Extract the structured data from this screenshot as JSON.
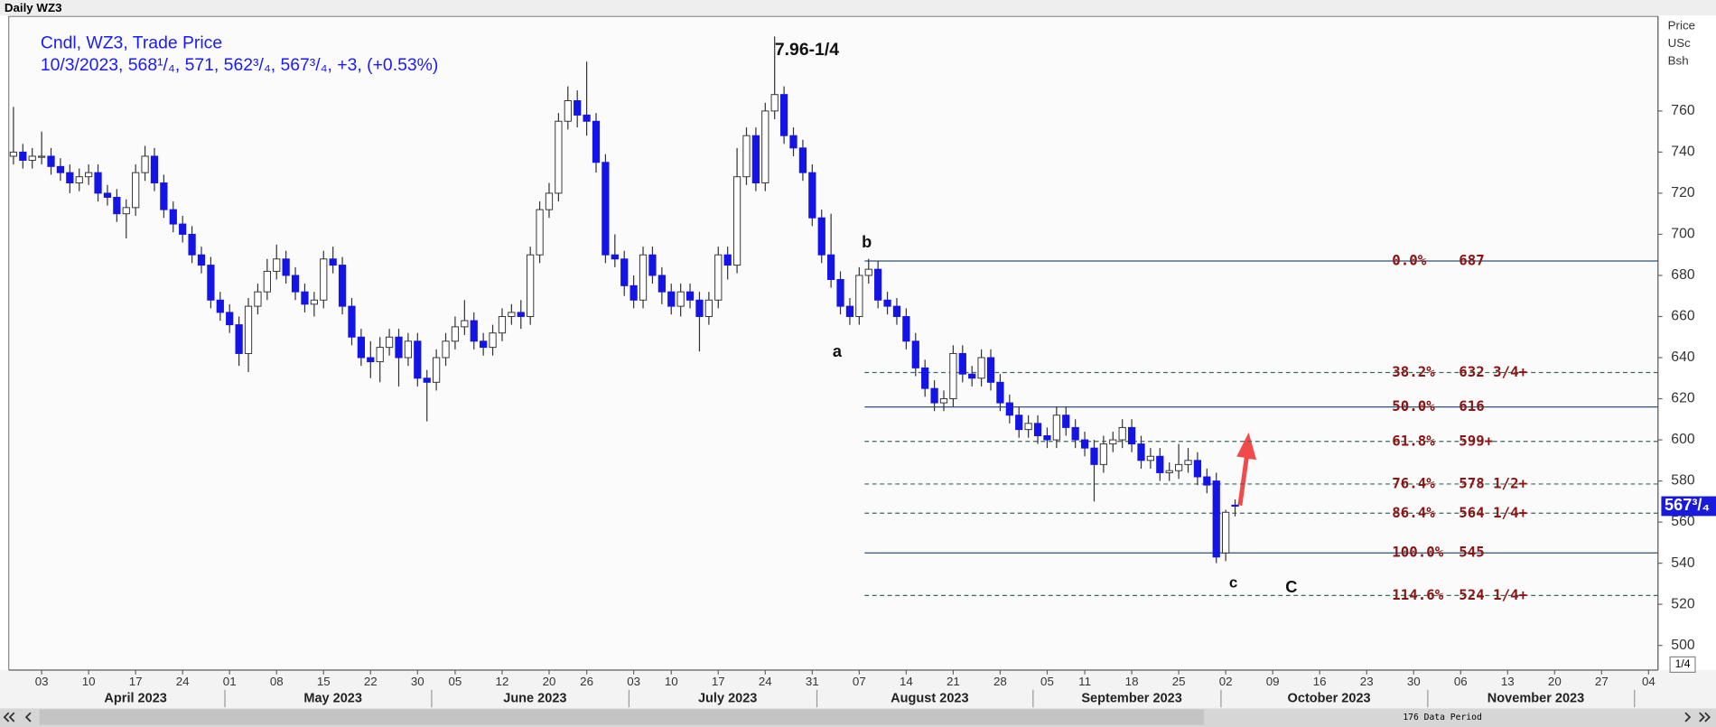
{
  "chart_data": {
    "type": "candlestick",
    "title": "Daily WZ3",
    "legend": [
      "Cndl, WZ3, Trade Price",
      "10/3/2023, 568¹/₄, 571, 562³/₄, 567³/₄, +3, (+0.53%)"
    ],
    "y_axis_label": [
      "Price",
      "USc",
      "Bsh"
    ],
    "up_color": "#ffffff",
    "down_color": "#1414e6",
    "outline_color": "#333333",
    "xlim": [
      -0.5,
      175
    ],
    "ylim": [
      488,
      806
    ],
    "yticks": [
      500,
      520,
      540,
      560,
      580,
      600,
      620,
      640,
      660,
      680,
      700,
      720,
      740,
      760
    ],
    "xticks": [
      {
        "value": 3,
        "label": "03"
      },
      {
        "value": 8,
        "label": "10"
      },
      {
        "value": 13,
        "label": "17"
      },
      {
        "value": 18,
        "label": "24"
      },
      {
        "value": 23,
        "label": "01"
      },
      {
        "value": 28,
        "label": "08"
      },
      {
        "value": 33,
        "label": "15"
      },
      {
        "value": 38,
        "label": "22"
      },
      {
        "value": 43,
        "label": "30"
      },
      {
        "value": 47,
        "label": "05"
      },
      {
        "value": 52,
        "label": "12"
      },
      {
        "value": 57,
        "label": "20"
      },
      {
        "value": 61,
        "label": "26"
      },
      {
        "value": 66,
        "label": "03"
      },
      {
        "value": 70,
        "label": "10"
      },
      {
        "value": 75,
        "label": "17"
      },
      {
        "value": 80,
        "label": "24"
      },
      {
        "value": 85,
        "label": "31"
      },
      {
        "value": 90,
        "label": "07"
      },
      {
        "value": 95,
        "label": "14"
      },
      {
        "value": 100,
        "label": "21"
      },
      {
        "value": 105,
        "label": "28"
      },
      {
        "value": 110,
        "label": "05"
      },
      {
        "value": 114,
        "label": "11"
      },
      {
        "value": 119,
        "label": "18"
      },
      {
        "value": 124,
        "label": "25"
      },
      {
        "value": 129,
        "label": "02"
      },
      {
        "value": 134,
        "label": "09"
      },
      {
        "value": 139,
        "label": "16"
      },
      {
        "value": 144,
        "label": "23"
      },
      {
        "value": 149,
        "label": "30"
      },
      {
        "value": 154,
        "label": "06"
      },
      {
        "value": 159,
        "label": "13"
      },
      {
        "value": 164,
        "label": "20"
      },
      {
        "value": 169,
        "label": "27"
      },
      {
        "value": 174,
        "label": "04"
      }
    ],
    "months": [
      "April 2023",
      "May 2023",
      "June 2023",
      "July 2023",
      "August 2023",
      "September 2023",
      "October 2023",
      "November 2023"
    ],
    "candles": {
      "open": [
        738,
        740,
        736,
        738,
        738,
        733,
        730,
        725,
        728,
        730,
        720,
        718,
        710,
        713,
        730,
        738,
        725,
        712,
        705,
        700,
        690,
        685,
        668,
        662,
        656,
        642,
        665,
        672,
        682,
        688,
        680,
        672,
        666,
        668,
        688,
        685,
        665,
        650,
        640,
        638,
        645,
        650,
        640,
        648,
        630,
        628,
        640,
        648,
        655,
        658,
        648,
        645,
        652,
        660,
        662,
        660,
        690,
        712,
        720,
        755,
        765,
        758,
        755,
        735,
        690,
        688,
        675,
        668,
        690,
        680,
        672,
        665,
        672,
        668,
        660,
        668,
        690,
        685,
        728,
        748,
        725,
        760,
        768,
        748,
        742,
        730,
        708,
        690,
        678,
        665,
        660,
        680,
        683,
        668,
        665,
        660,
        648,
        635,
        625,
        618,
        620,
        642,
        632,
        630,
        640,
        628,
        618,
        612,
        605,
        608,
        602,
        600,
        612,
        606,
        600,
        596,
        588,
        598,
        600,
        606,
        598,
        590,
        592,
        584,
        585,
        588,
        590,
        582,
        580,
        545,
        568.25
      ],
      "high": [
        762,
        744,
        742,
        750,
        742,
        737,
        734,
        732,
        734,
        734,
        724,
        722,
        717,
        734,
        743,
        742,
        729,
        716,
        709,
        704,
        694,
        689,
        672,
        666,
        660,
        669,
        676,
        688,
        695,
        692,
        684,
        676,
        672,
        692,
        694,
        689,
        669,
        654,
        648,
        650,
        654,
        654,
        652,
        652,
        634,
        644,
        652,
        660,
        668,
        662,
        652,
        656,
        664,
        666,
        668,
        694,
        716,
        725,
        759,
        772,
        770,
        784,
        759,
        739,
        700,
        692,
        680,
        694,
        694,
        684,
        676,
        676,
        676,
        672,
        672,
        694,
        694,
        742,
        752,
        752,
        764,
        796.25,
        772,
        752,
        746,
        734,
        712,
        710,
        682,
        669,
        684,
        688,
        687,
        672,
        669,
        664,
        652,
        639,
        629,
        624,
        646,
        646,
        636,
        644,
        644,
        632,
        622,
        616,
        612,
        612,
        606,
        616,
        616,
        610,
        604,
        600,
        602,
        604,
        610,
        610,
        602,
        596,
        596,
        589,
        598,
        596,
        594,
        586,
        584,
        566,
        571
      ],
      "low": [
        734,
        732,
        732,
        734,
        729,
        726,
        720,
        721,
        724,
        716,
        714,
        706,
        698,
        709,
        726,
        721,
        708,
        701,
        696,
        686,
        681,
        664,
        658,
        652,
        636,
        633,
        661,
        668,
        678,
        676,
        668,
        662,
        660,
        664,
        681,
        661,
        646,
        636,
        630,
        628,
        641,
        626,
        636,
        626,
        609,
        624,
        636,
        644,
        651,
        644,
        641,
        641,
        648,
        656,
        654,
        656,
        686,
        708,
        716,
        751,
        752,
        748,
        730,
        686,
        684,
        670,
        664,
        664,
        676,
        666,
        661,
        660,
        664,
        643,
        656,
        664,
        678,
        681,
        724,
        721,
        721,
        756,
        744,
        738,
        726,
        704,
        686,
        674,
        661,
        656,
        656,
        676,
        664,
        661,
        656,
        644,
        631,
        621,
        614,
        614,
        616,
        628,
        626,
        626,
        624,
        614,
        608,
        601,
        601,
        598,
        596,
        596,
        602,
        596,
        592,
        570,
        584,
        594,
        596,
        594,
        586,
        586,
        580,
        580,
        581,
        584,
        578,
        574,
        540,
        541,
        562.75
      ],
      "close": [
        740,
        736,
        738,
        738,
        733,
        730,
        725,
        728,
        730,
        720,
        718,
        710,
        713,
        730,
        738,
        725,
        712,
        705,
        700,
        690,
        685,
        668,
        662,
        656,
        642,
        665,
        672,
        682,
        688,
        680,
        672,
        666,
        668,
        688,
        685,
        665,
        650,
        640,
        638,
        645,
        650,
        640,
        648,
        630,
        628,
        640,
        648,
        655,
        658,
        648,
        645,
        652,
        660,
        662,
        660,
        690,
        712,
        720,
        755,
        765,
        758,
        755,
        735,
        690,
        688,
        675,
        668,
        690,
        680,
        672,
        665,
        672,
        668,
        660,
        668,
        690,
        685,
        728,
        748,
        725,
        760,
        768,
        748,
        742,
        730,
        708,
        690,
        678,
        665,
        660,
        680,
        683,
        668,
        665,
        660,
        648,
        635,
        625,
        618,
        620,
        642,
        632,
        630,
        640,
        628,
        618,
        612,
        605,
        608,
        602,
        600,
        612,
        606,
        600,
        596,
        588,
        598,
        600,
        606,
        598,
        590,
        592,
        584,
        585,
        588,
        590,
        582,
        578,
        543,
        564.75,
        567.75
      ]
    },
    "last_price": {
      "value": 567.75,
      "label": "567³/₄"
    },
    "fib_color": "#2e5275",
    "fib_dash_color": "#3d6b5a",
    "fib_text_color": "#8b1414",
    "fib_levels": [
      {
        "ratio": "0.0%",
        "value": 687,
        "label": "687",
        "style": "solid"
      },
      {
        "ratio": "38.2%",
        "value": 632.76,
        "label": "632 3/4+",
        "style": "dashed"
      },
      {
        "ratio": "50.0%",
        "value": 616,
        "label": "616",
        "style": "solid"
      },
      {
        "ratio": "61.8%",
        "value": 599.24,
        "label": "599+",
        "style": "dashed"
      },
      {
        "ratio": "76.4%",
        "value": 578.51,
        "label": "578 1/2+",
        "style": "dashed"
      },
      {
        "ratio": "86.4%",
        "value": 564.31,
        "label": "564 1/4+",
        "style": "dashed"
      },
      {
        "ratio": "100.0%",
        "value": 545,
        "label": "545",
        "style": "solid"
      },
      {
        "ratio": "114.6%",
        "value": 524.27,
        "label": "524 1/4+",
        "style": "dashed"
      }
    ],
    "annotations": [
      "7.96-1/4",
      "b",
      "a",
      "c",
      "C"
    ],
    "page_indicator": "1/4",
    "scrollbar_label": "176 Data Period"
  }
}
